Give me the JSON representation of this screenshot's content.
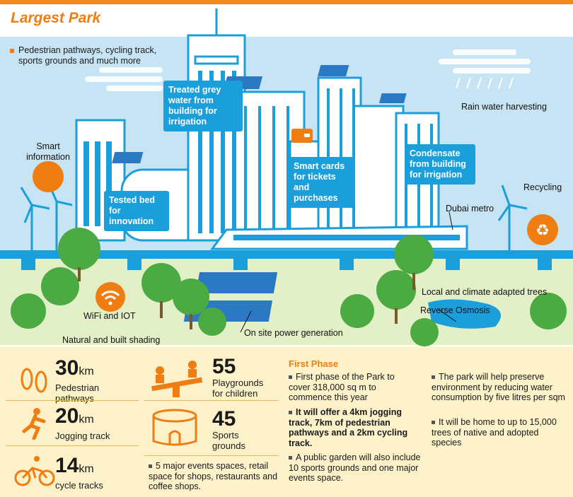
{
  "title": "Largest Park",
  "tagline": "Pedestrian pathways, cycling track, sports grounds and much more",
  "callouts": {
    "grey_water": "Treated grey water from building for irrigation",
    "tested_bed": "Tested bed for innovation",
    "smart_cards": "Smart cards for tickets and purchases",
    "condensate": "Condensate from building for irrigation"
  },
  "labels": {
    "smart_info": "Smart information",
    "rain_water": "Rain water harvesting",
    "recycling": "Recycling",
    "dubai_metro": "Dubai metro",
    "local_trees": "Local and climate adapted trees",
    "reverse_osmosis": "Reverse Osmosis",
    "wifi": "WiFi and IOT",
    "shading": "Natural and built shading",
    "power": "On site power generation"
  },
  "stats": {
    "pedestrian": {
      "value": "30",
      "unit": "km",
      "label": "Pedestrian pathways"
    },
    "jogging": {
      "value": "20",
      "unit": "km",
      "label": "Jogging track"
    },
    "cycle": {
      "value": "14",
      "unit": "km",
      "label": "cycle tracks"
    },
    "playgrounds": {
      "value": "55",
      "label": "Playgrounds for children"
    },
    "sports": {
      "value": "45",
      "label": "Sports grounds"
    },
    "events_note": "5 major events spaces, retail space for shops, restaurants and coffee shops."
  },
  "first_phase": {
    "heading": "First Phase",
    "b1": "First phase of the Park to cover 318,000 sq m to commence this year",
    "b2": "It will offer a 4km jogging track, 7km of pedestrian pathways and a 2km cycling track.",
    "b3": "A public garden will also include 10 sports grounds and one major events space.",
    "b4": "The park will help preserve environment by reducing water consumption by five litres per sqm",
    "b5": "It will be home to up to 15,000 trees of native and adopted species"
  },
  "colors": {
    "orange": "#ef7d12",
    "blue": "#1a9fdb",
    "sky": "#c6e4f4",
    "grass": "#e2efc7",
    "cream": "#fdf1c9",
    "tree": "#4caa43"
  }
}
